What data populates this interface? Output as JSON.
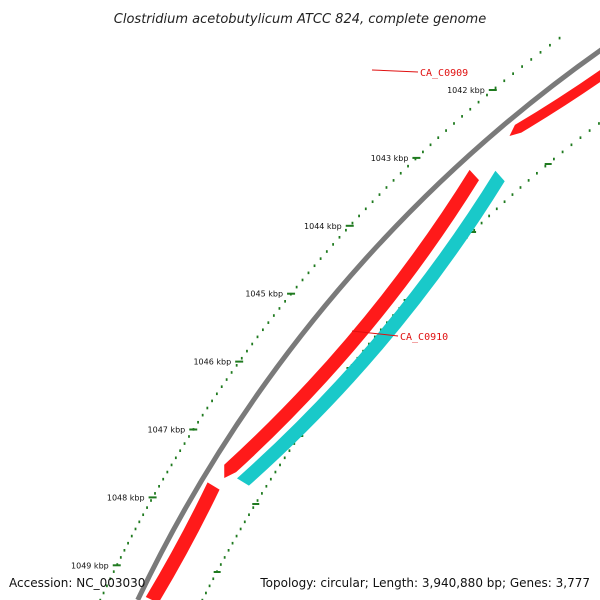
{
  "title": "Clostridium acetobutylicum ATCC 824, complete genome",
  "footer": {
    "accession": "Accession: NC_003030",
    "summary": "Topology: circular; Length: 3,940,880 bp; Genes: 3,777"
  },
  "scale_ticks": [
    {
      "label": "1042 kbp",
      "kbp": 1042
    },
    {
      "label": "1043 kbp",
      "kbp": 1043
    },
    {
      "label": "1044 kbp",
      "kbp": 1044
    },
    {
      "label": "1045 kbp",
      "kbp": 1045
    },
    {
      "label": "1046 kbp",
      "kbp": 1046
    },
    {
      "label": "1047 kbp",
      "kbp": 1047
    },
    {
      "label": "1048 kbp",
      "kbp": 1048
    },
    {
      "label": "1049 kbp",
      "kbp": 1049
    }
  ],
  "genes": [
    {
      "id": "CA_C0909",
      "label": "CA_C0909"
    },
    {
      "id": "CA_C0910",
      "label": "CA_C0910"
    }
  ],
  "colors": {
    "backbone": "#7a7a7a",
    "forward": "#ff1a1a",
    "reverse": "#19c9c9",
    "ticks": "#1f7a1f",
    "label": "#e01010"
  }
}
